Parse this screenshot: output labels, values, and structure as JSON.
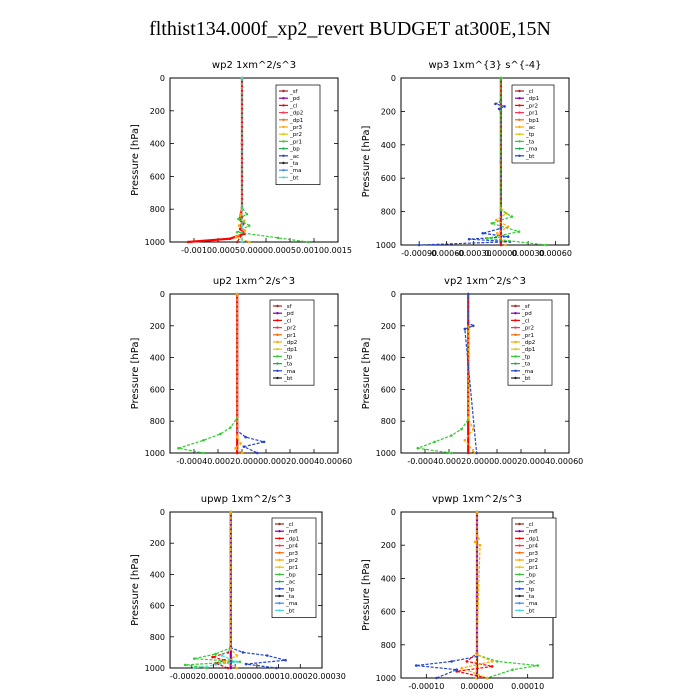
{
  "page": {
    "title": "flthist134.000f_xp2_revert  BUDGET at300E,15N"
  },
  "chart_data": [
    {
      "type": "line",
      "title": "wp2   1xm^2/s^3",
      "ylabel": "Pressure [hPa]",
      "ylim": [
        1000,
        0
      ],
      "yticks": [
        0,
        200,
        400,
        600,
        800,
        1000
      ],
      "xlim": [
        -0.0012,
        0.0016
      ],
      "xticklabels": [
        "-0.00100.0005",
        "0.00000.00050.00100.0015"
      ],
      "legend": [
        "_sf",
        "_pd",
        "_cl",
        "_dp2",
        "_dp1",
        "_pr3",
        "_pr2",
        "_pr1",
        "_bp",
        "_ac",
        "_ta",
        "_ma",
        "_bt"
      ],
      "series": [
        {
          "name": "_cl",
          "color": "#ff0000",
          "x": [
            0,
            0,
            0,
            -2e-05,
            -4e-05,
            2e-05,
            -3e-05,
            4e-05,
            -0.0002,
            -0.0009
          ],
          "y": [
            0,
            400,
            800,
            830,
            860,
            890,
            920,
            950,
            980,
            1000
          ]
        },
        {
          "name": "_dp1",
          "color": "#ffaa00",
          "x": [
            0,
            0,
            -3e-05,
            4e-05,
            -5e-05,
            5e-05,
            -0.0001,
            0.00012
          ],
          "y": [
            0,
            800,
            840,
            870,
            900,
            930,
            970,
            1000
          ]
        },
        {
          "name": "_pr1",
          "color": "#33cc33",
          "x": [
            0,
            0,
            8e-05,
            -6e-05,
            0.00012,
            -8e-05,
            0.0006,
            0.0011
          ],
          "y": [
            0,
            790,
            830,
            860,
            900,
            940,
            975,
            1000
          ]
        },
        {
          "name": "_sf",
          "color": "#aa2222",
          "x": [
            0,
            0,
            -1e-05,
            1e-05,
            -8e-05
          ],
          "y": [
            0,
            850,
            900,
            950,
            1000
          ]
        },
        {
          "name": "_bt",
          "color": "#44dddd",
          "x": [
            0,
            0,
            0
          ],
          "y": [
            0,
            900,
            1000
          ]
        }
      ]
    },
    {
      "type": "line",
      "title": "wp3   1xm^{3} s^{-4}",
      "ylabel": "Pressure [hPa]",
      "ylim": [
        1000,
        0
      ],
      "yticks": [
        0,
        200,
        400,
        600,
        800,
        1000
      ],
      "xlim": [
        -0.0011,
        0.00075
      ],
      "xticklabels": [
        "-0.00090",
        "-0.00060",
        "-0.00030",
        "0.00000",
        "0.00030",
        "0.00060"
      ],
      "xtickvals": [
        -0.0009,
        -0.0006,
        -0.0003,
        0.0,
        0.0003,
        0.0006
      ],
      "legend": [
        "_cl",
        "_dp1",
        "_pr2",
        "_pr1",
        "_bp1",
        "_ac",
        "_tp",
        "_ta",
        "_ma",
        "_bt"
      ],
      "series": [
        {
          "name": "_cl",
          "color": "#ff0000",
          "x": [
            0,
            0,
            0,
            0
          ],
          "y": [
            0,
            500,
            900,
            1000
          ]
        },
        {
          "name": "_tp",
          "color": "#2244cc",
          "x": [
            0,
            0,
            -6e-05,
            4e-05,
            -2e-05,
            0,
            0,
            -0.0002,
            8e-05,
            -0.00035,
            0.0001,
            -0.0009
          ],
          "y": [
            0,
            140,
            155,
            170,
            185,
            200,
            900,
            930,
            950,
            965,
            980,
            1000
          ]
        },
        {
          "name": "_pr2",
          "color": "#ffaa00",
          "x": [
            0,
            0,
            6e-05,
            -5e-05,
            8e-05,
            -4e-05,
            5e-05
          ],
          "y": [
            0,
            780,
            810,
            850,
            890,
            930,
            1000
          ]
        },
        {
          "name": "_pr1",
          "color": "#33cc33",
          "x": [
            0,
            0,
            0.00012,
            -0.0001,
            0.0002,
            -0.00015,
            0.0005
          ],
          "y": [
            0,
            790,
            830,
            870,
            920,
            960,
            1000
          ]
        }
      ]
    },
    {
      "type": "line",
      "title": "up2   1xm^2/s^3",
      "ylabel": "Pressure [hPa]",
      "ylim": [
        1000,
        0
      ],
      "yticks": [
        0,
        200,
        400,
        600,
        800,
        1000
      ],
      "xlim": [
        -0.0004,
        0.0006
      ],
      "xticklabels": [
        "-0.00040.0002",
        "0.00000.00020.00040.00060"
      ],
      "legend": [
        "_sf",
        "_pd",
        "_cl",
        "_pr2",
        "_pr1",
        "_dp2",
        "_dp1",
        "_tp",
        "_ta",
        "_ma",
        "_bt"
      ],
      "series": [
        {
          "name": "_cl",
          "color": "#ff0000",
          "x": [
            0,
            0,
            0
          ],
          "y": [
            0,
            500,
            1000
          ]
        },
        {
          "name": "_dp1",
          "color": "#33cc33",
          "x": [
            0,
            0,
            -4e-05,
            -0.0001,
            -0.0002,
            -0.00035,
            -0.0002
          ],
          "y": [
            0,
            780,
            840,
            880,
            920,
            970,
            1000
          ]
        },
        {
          "name": "_tp",
          "color": "#2244cc",
          "x": [
            0,
            0,
            5e-05,
            0.00016,
            4e-05,
            0.00012
          ],
          "y": [
            0,
            860,
            900,
            930,
            960,
            1000
          ]
        },
        {
          "name": "_pr2",
          "color": "#ffaa00",
          "x": [
            0,
            0,
            2e-05,
            -1e-05,
            3e-05
          ],
          "y": [
            0,
            900,
            940,
            970,
            1000
          ]
        }
      ]
    },
    {
      "type": "line",
      "title": "vp2   1xm^2/s^3",
      "ylabel": "Pressure [hPa]",
      "ylim": [
        1000,
        0
      ],
      "yticks": [
        0,
        200,
        400,
        600,
        800,
        1000
      ],
      "xlim": [
        -0.0004,
        0.0006
      ],
      "xticklabels": [
        "-0.00040.0002",
        "0.00000.00020.00040.00060"
      ],
      "legend": [
        "_sf",
        "_pd",
        "_cl",
        "_pr2",
        "_pr1",
        "_dp2",
        "_dp1",
        "_tp",
        "_ta",
        "_ma",
        "_bt"
      ],
      "series": [
        {
          "name": "_cl",
          "color": "#ff0000",
          "x": [
            0,
            0,
            0
          ],
          "y": [
            0,
            500,
            1000
          ]
        },
        {
          "name": "_dp1",
          "color": "#33cc33",
          "x": [
            0,
            0,
            -4e-05,
            -0.0001,
            -0.0002,
            -0.0003,
            -0.0001
          ],
          "y": [
            0,
            790,
            850,
            890,
            930,
            970,
            1000
          ]
        },
        {
          "name": "_pr2",
          "color": "#ffaa00",
          "x": [
            0,
            0,
            3e-05,
            -2e-05,
            4e-05
          ],
          "y": [
            0,
            780,
            850,
            920,
            1000
          ]
        },
        {
          "name": "_tp",
          "color": "#2244cc",
          "x": [
            0,
            0,
            3e-05,
            -2e-05,
            5e-05
          ],
          "y": [
            0,
            180,
            200,
            220,
            1000
          ]
        }
      ]
    },
    {
      "type": "line",
      "title": "upwp   1xm^2/s^3",
      "ylabel": "Pressure [hPa]",
      "ylim": [
        1000,
        0
      ],
      "yticks": [
        0,
        200,
        400,
        600,
        800,
        1000
      ],
      "xlim": [
        -0.0002,
        0.0003
      ],
      "xticklabels": [
        "-0.00020.0001",
        "0.00000.00010.00020.00030"
      ],
      "legend": [
        "_cl",
        "_mfl",
        "_dp1",
        "_pr4",
        "_pr3",
        "_pr2",
        "_pr1",
        "_bp",
        "_ac",
        "_tp",
        "_ta",
        "_ma",
        "_bt"
      ],
      "series": [
        {
          "name": "_mfl",
          "color": "#8800aa",
          "x": [
            0,
            0,
            0
          ],
          "y": [
            0,
            500,
            1000
          ]
        },
        {
          "name": "_dp1",
          "color": "#ff0000",
          "x": [
            0,
            0,
            -1e-05,
            -6e-05,
            -2e-05,
            -5e-05,
            -1e-05
          ],
          "y": [
            0,
            860,
            900,
            930,
            950,
            970,
            1000
          ]
        },
        {
          "name": "_pr1",
          "color": "#33cc33",
          "x": [
            0,
            0,
            -5e-05,
            -0.00012,
            3e-05,
            -0.00015,
            -8e-05
          ],
          "y": [
            0,
            870,
            910,
            940,
            960,
            980,
            1000
          ]
        },
        {
          "name": "_tp",
          "color": "#2244cc",
          "x": [
            0,
            0,
            4e-05,
            0.00012,
            0.00018,
            5e-05,
            0.00015
          ],
          "y": [
            0,
            870,
            900,
            920,
            950,
            975,
            1000
          ]
        },
        {
          "name": "_bt",
          "color": "#44dddd",
          "x": [
            0,
            0,
            -3e-05,
            2e-05,
            -0.00012
          ],
          "y": [
            0,
            880,
            920,
            960,
            1000
          ]
        },
        {
          "name": "_pr2",
          "color": "#ffaa00",
          "x": [
            0,
            0,
            2e-05,
            -2e-05,
            2e-05
          ],
          "y": [
            0,
            880,
            920,
            960,
            1000
          ]
        }
      ]
    },
    {
      "type": "line",
      "title": "vpwp   1xm^2/s^3",
      "ylabel": "Pressure [hPa]",
      "ylim": [
        1000,
        0
      ],
      "yticks": [
        0,
        200,
        400,
        600,
        800,
        1000
      ],
      "xlim": [
        -0.00015,
        0.00015
      ],
      "xticklabels": [
        "-0.00010",
        "0.00000",
        "0.00010"
      ],
      "xtickvals": [
        -0.0001,
        0.0,
        0.0001
      ],
      "legend": [
        "_cl",
        "_mfl",
        "_dp1",
        "_pr4",
        "_pr3",
        "_pr2",
        "_pr1",
        "_bp",
        "_ac",
        "_tp",
        "_ta",
        "_ma",
        "_bt"
      ],
      "series": [
        {
          "name": "_mfl",
          "color": "#8800aa",
          "x": [
            0,
            0,
            0
          ],
          "y": [
            0,
            500,
            1000
          ]
        },
        {
          "name": "_pr2",
          "color": "#ffaa00",
          "x": [
            0,
            0,
            3e-06,
            -4e-06,
            6e-06,
            -2e-06
          ],
          "y": [
            0,
            140,
            160,
            180,
            200,
            1000
          ]
        },
        {
          "name": "_dp1",
          "color": "#ff0000",
          "x": [
            0,
            0,
            -2e-05,
            3e-05,
            -4e-05,
            2e-05
          ],
          "y": [
            0,
            850,
            900,
            930,
            960,
            1000
          ]
        },
        {
          "name": "_pr1",
          "color": "#33cc33",
          "x": [
            0,
            0,
            4e-05,
            0.00012,
            7e-05,
            2e-05
          ],
          "y": [
            0,
            860,
            900,
            925,
            950,
            1000
          ]
        },
        {
          "name": "_tp",
          "color": "#2244cc",
          "x": [
            0,
            0,
            -5e-05,
            -0.00012,
            -4e-05,
            -8e-05
          ],
          "y": [
            0,
            870,
            900,
            925,
            950,
            1000
          ]
        },
        {
          "name": "_pr3",
          "color": "#ffaa00",
          "x": [
            0,
            0,
            3e-05,
            -3e-05,
            2e-05
          ],
          "y": [
            0,
            860,
            900,
            940,
            1000
          ]
        }
      ]
    }
  ]
}
